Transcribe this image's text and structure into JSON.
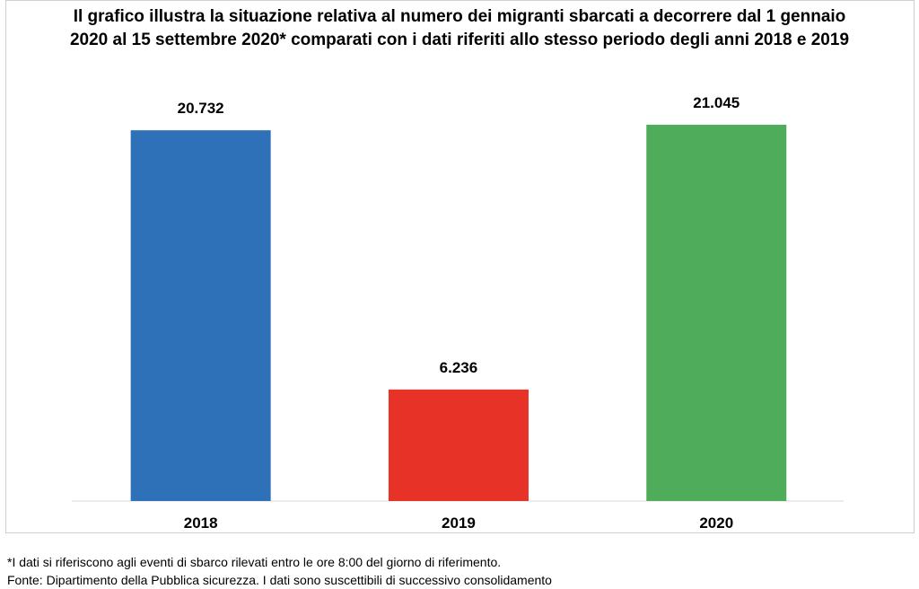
{
  "chart_data": {
    "type": "bar",
    "title": "Il grafico illustra la situazione relativa al numero dei migranti sbarcati a decorrere dal 1 gennaio 2020 al 15 settembre 2020* comparati con i dati riferiti allo stesso periodo degli anni 2018  e 2019",
    "categories": [
      "2018",
      "2019",
      "2020"
    ],
    "values": [
      20732,
      6236,
      21045
    ],
    "value_labels": [
      "20.732",
      "6.236",
      "21.045"
    ],
    "colors": [
      "#2f71b8",
      "#e63227",
      "#4fac5b"
    ],
    "xlabel": "",
    "ylabel": "",
    "ylim": [
      0,
      23500
    ],
    "grid": false,
    "legend": "none"
  },
  "notes": {
    "footnote": "*I dati si riferiscono agli eventi di sbarco rilevati entro le ore 8:00 del giorno di riferimento.",
    "source": " Fonte: Dipartimento della Pubblica sicurezza. I dati sono suscettibili di successivo consolidamento"
  }
}
